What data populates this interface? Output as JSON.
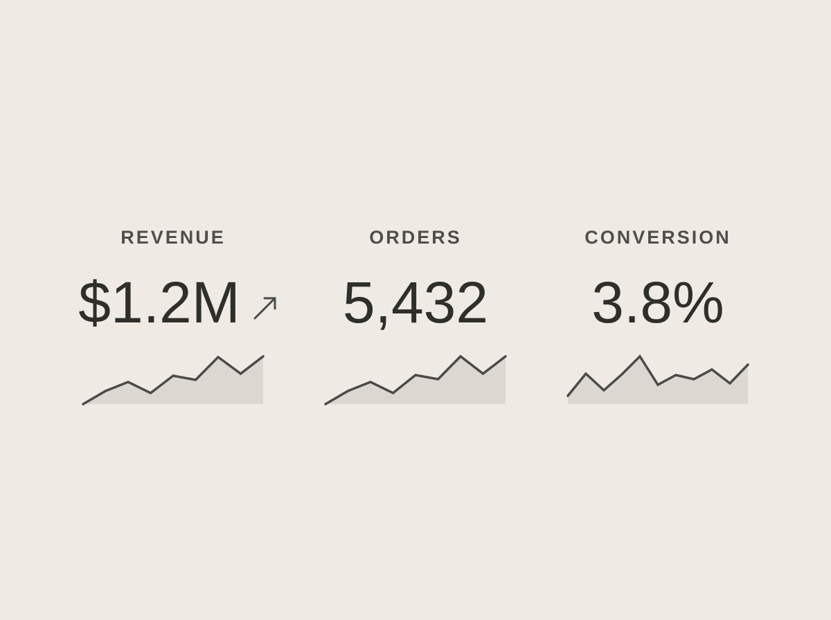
{
  "kpis": [
    {
      "label": "REVENUE",
      "value": "$1.2M",
      "sparkline": [
        0,
        19,
        32,
        16,
        41,
        35,
        68,
        44,
        69
      ]
    },
    {
      "label": "ORDERS",
      "value": "5,432",
      "sparkline": [
        0,
        19,
        32,
        16,
        42,
        36,
        69,
        44,
        69
      ]
    },
    {
      "label": "CONVERSION",
      "value": "3.8%",
      "sparkline": [
        12,
        44,
        20,
        43,
        69,
        28,
        42,
        36,
        50,
        30,
        57
      ]
    }
  ]
}
